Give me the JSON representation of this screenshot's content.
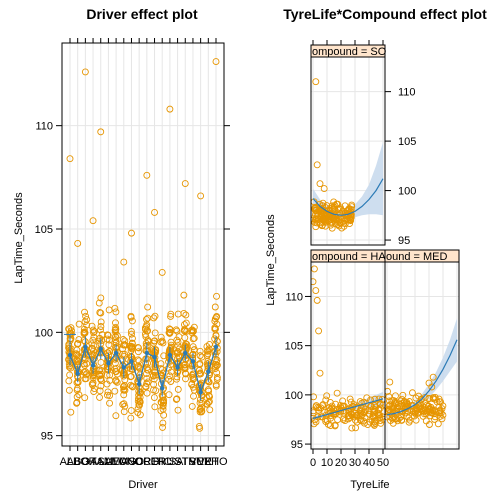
{
  "chart_data": [
    {
      "type": "scatter",
      "title": "Driver effect plot",
      "xlabel": "Driver",
      "ylabel": "LapTime_Seconds",
      "ylim": [
        94.5,
        114
      ],
      "yticks": [
        95,
        100,
        105,
        110
      ],
      "grid": true,
      "categories": [
        "ALB",
        "ALO",
        "BOT",
        "GAS",
        "HAM",
        "LAT",
        "LEC",
        "MAG",
        "MSC",
        "NOR",
        "OCO",
        "PER",
        "RIC",
        "RUS",
        "SAI",
        "STR",
        "TSU",
        "VER",
        "VET",
        "ZHO"
      ],
      "fit": [
        98.9,
        98.0,
        99.3,
        98.4,
        99.2,
        98.5,
        99.0,
        98.3,
        98.6,
        97.5,
        99.0,
        98.8,
        97.3,
        98.9,
        98.3,
        99.0,
        98.6,
        97.1,
        98.1,
        99.3
      ],
      "ci_lower": [
        98.4,
        97.6,
        98.8,
        98.0,
        98.7,
        98.0,
        98.6,
        97.8,
        98.2,
        97.0,
        98.5,
        98.3,
        96.9,
        98.5,
        97.9,
        98.6,
        98.2,
        96.7,
        97.6,
        98.8
      ],
      "ci_upper": [
        99.9,
        98.4,
        99.8,
        98.8,
        99.7,
        99.0,
        99.4,
        98.8,
        99.0,
        98.0,
        99.5,
        99.3,
        97.7,
        99.3,
        98.7,
        99.4,
        99.0,
        97.5,
        98.6,
        99.8
      ],
      "outliers": [
        {
          "driver": "ALB",
          "y": 108.4
        },
        {
          "driver": "ALO",
          "y": 104.3
        },
        {
          "driver": "BOT",
          "y": 112.6
        },
        {
          "driver": "GAS",
          "y": 105.4
        },
        {
          "driver": "HAM",
          "y": 109.7
        },
        {
          "driver": "MAG",
          "y": 103.4
        },
        {
          "driver": "MSC",
          "y": 104.8
        },
        {
          "driver": "OCO",
          "y": 107.6
        },
        {
          "driver": "PER",
          "y": 105.8
        },
        {
          "driver": "RIC",
          "y": 102.9
        },
        {
          "driver": "RUS",
          "y": 110.8
        },
        {
          "driver": "STR",
          "y": 107.2
        },
        {
          "driver": "VER",
          "y": 106.6
        },
        {
          "driver": "ZHO",
          "y": 113.1
        }
      ]
    },
    {
      "type": "line",
      "title": "TyreLife*Compound effect plot",
      "xlabel": "TyreLife",
      "ylabel": "LapTime_Seconds",
      "xlim": [
        0,
        50
      ],
      "xticks": [
        0,
        10,
        20,
        30,
        40,
        50
      ],
      "ylim": [
        94.5,
        114
      ],
      "yticks": [
        95,
        100,
        105,
        110
      ],
      "panels": [
        {
          "strip": "ompound = SO",
          "x": [
            0,
            5,
            10,
            15,
            20,
            25,
            30,
            35,
            40,
            45,
            50
          ],
          "fit": [
            99.2,
            98.4,
            97.9,
            97.6,
            97.5,
            97.6,
            97.9,
            98.4,
            99.1,
            100.0,
            101.2
          ],
          "lower": [
            98.2,
            97.7,
            97.4,
            97.2,
            97.1,
            97.1,
            97.3,
            97.5,
            97.6,
            97.6,
            97.5
          ],
          "upper": [
            100.2,
            99.1,
            98.4,
            98.0,
            97.9,
            98.1,
            98.6,
            99.4,
            100.6,
            102.5,
            104.9
          ],
          "point_cloud": {
            "x_range": [
              0,
              28
            ],
            "y_center": 97.5,
            "y_spread": 1.0,
            "outliers": [
              [
                2,
                111.0
              ],
              [
                3,
                102.6
              ],
              [
                5,
                100.7
              ],
              [
                8,
                100.2
              ]
            ]
          }
        },
        {
          "strip": "ompound = HA",
          "x": [
            0,
            5,
            10,
            15,
            20,
            25,
            30,
            35,
            40,
            45,
            50
          ],
          "fit": [
            97.6,
            97.8,
            98.0,
            98.2,
            98.4,
            98.6,
            98.8,
            99.0,
            99.2,
            99.4,
            99.6
          ],
          "lower": [
            97.4,
            97.6,
            97.8,
            98.0,
            98.2,
            98.4,
            98.5,
            98.6,
            98.7,
            98.8,
            98.9
          ],
          "upper": [
            97.8,
            98.0,
            98.2,
            98.4,
            98.6,
            98.8,
            99.1,
            99.4,
            99.7,
            100.0,
            100.3
          ],
          "point_cloud": {
            "x_range": [
              0,
              50
            ],
            "y_center": 98.3,
            "y_spread": 1.5,
            "outliers": [
              [
                0,
                111.5
              ],
              [
                1,
                112.8
              ],
              [
                2,
                110.6
              ],
              [
                3,
                109.6
              ],
              [
                4,
                106.5
              ],
              [
                5,
                102.2
              ]
            ]
          }
        },
        {
          "strip": "ound = MED",
          "x": [
            0,
            5,
            10,
            15,
            20,
            25,
            30,
            35,
            40,
            45,
            50
          ],
          "fit": [
            98.0,
            98.1,
            98.3,
            98.6,
            99.0,
            99.6,
            100.4,
            101.4,
            102.6,
            104.0,
            105.6
          ],
          "lower": [
            97.6,
            97.8,
            98.0,
            98.3,
            98.6,
            99.1,
            99.7,
            100.5,
            101.4,
            102.4,
            103.4
          ],
          "upper": [
            98.4,
            98.4,
            98.6,
            98.9,
            99.4,
            100.1,
            101.1,
            102.3,
            103.8,
            105.6,
            107.8
          ],
          "point_cloud": {
            "x_range": [
              0,
              40
            ],
            "y_center": 98.6,
            "y_spread": 1.4,
            "outliers": [
              [
                2,
                101.3
              ],
              [
                30,
                101.2
              ],
              [
                32,
                100.8
              ],
              [
                33,
                101.8
              ]
            ]
          }
        }
      ]
    }
  ],
  "colors": {
    "points": "#e69500",
    "fit": "#2c7bb6",
    "band": "#c6d8ec",
    "grid": "#e6e6e6",
    "strip": "#ffe5cc",
    "strip_alt": "#ffcc99"
  }
}
